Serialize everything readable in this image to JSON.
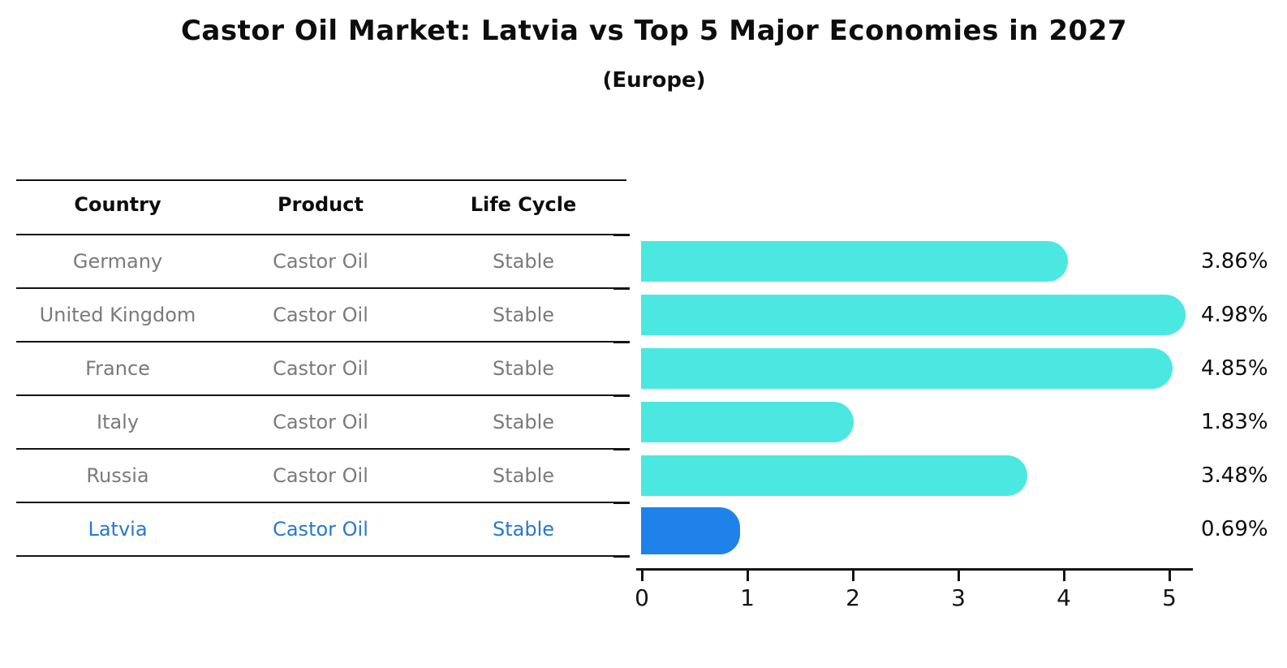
{
  "title": "Castor Oil Market: Latvia vs Top 5 Major Economies in 2027",
  "subtitle": "(Europe)",
  "table": {
    "headers": [
      "Country",
      "Product",
      "Life Cycle"
    ],
    "rows": [
      {
        "country": "Germany",
        "product": "Castor Oil",
        "life_cycle": "Stable",
        "highlight": false
      },
      {
        "country": "United Kingdom",
        "product": "Castor Oil",
        "life_cycle": "Stable",
        "highlight": false
      },
      {
        "country": "France",
        "product": "Castor Oil",
        "life_cycle": "Stable",
        "highlight": false
      },
      {
        "country": "Italy",
        "product": "Castor Oil",
        "life_cycle": "Stable",
        "highlight": false
      },
      {
        "country": "Russia",
        "product": "Castor Oil",
        "life_cycle": "Stable",
        "highlight": false
      },
      {
        "country": "Latvia",
        "product": "Castor Oil",
        "life_cycle": "Stable",
        "highlight": true
      }
    ]
  },
  "chart_data": {
    "type": "bar",
    "orientation": "horizontal",
    "title": "Castor Oil Market: Latvia vs Top 5 Major Economies in 2027",
    "subtitle": "(Europe)",
    "categories": [
      "Germany",
      "United Kingdom",
      "France",
      "Italy",
      "Russia",
      "Latvia"
    ],
    "values": [
      3.86,
      4.98,
      4.85,
      1.83,
      3.48,
      0.69
    ],
    "bar_labels": [
      "3.86%",
      "4.98%",
      "4.85%",
      "1.83%",
      "3.48%",
      "0.69%"
    ],
    "xlabel": "",
    "ylabel": "",
    "xlim": [
      0,
      5.3
    ],
    "xticks": [
      "0",
      "1",
      "2",
      "3",
      "4",
      "5"
    ],
    "grid": false,
    "legend": false,
    "highlight_index": 5
  },
  "colors": {
    "bar": "#4BE8E2",
    "highlight_bar": "#1E82EA",
    "highlight_border": "#1E82EA",
    "highlight_text": "#2878CE",
    "row_text": "#7a7a7a",
    "header_text": "#0d0d0d",
    "axis": "#141414"
  }
}
